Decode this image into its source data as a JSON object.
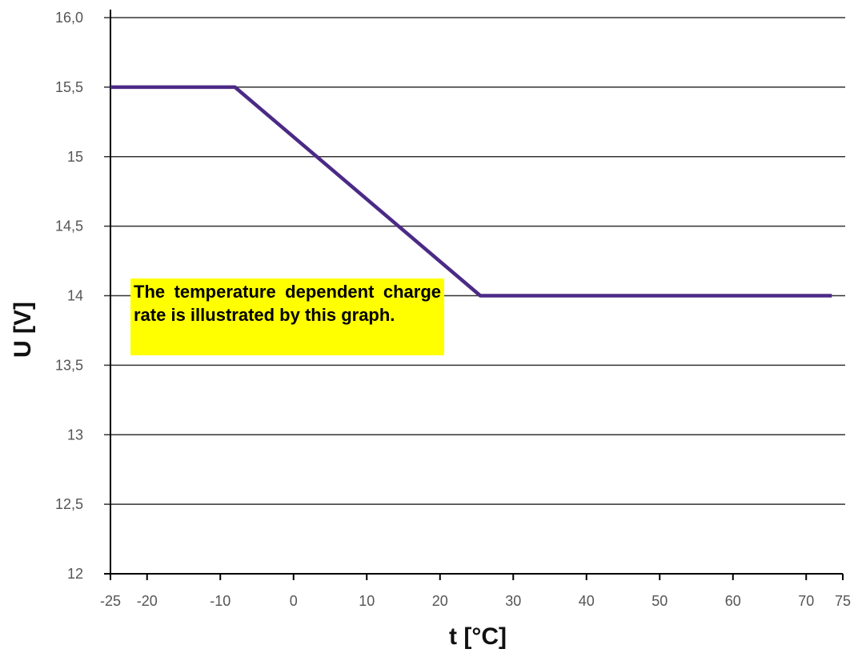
{
  "chart_data": {
    "type": "line",
    "xlabel": "t [°C]",
    "ylabel": "U [V]",
    "xlim": [
      -25,
      75
    ],
    "ylim": [
      12,
      16
    ],
    "x_ticks": [
      -25,
      -20,
      -10,
      0,
      10,
      20,
      30,
      40,
      50,
      60,
      70,
      75
    ],
    "x_tick_labels": [
      "-25",
      "-20",
      "-10",
      "0",
      "10",
      "20",
      "30",
      "40",
      "50",
      "60",
      "70",
      "75"
    ],
    "y_ticks": [
      12,
      12.5,
      13,
      13.5,
      14,
      14.5,
      15,
      15.5,
      16
    ],
    "y_tick_labels": [
      "12",
      "12,5",
      "13",
      "13,5",
      "14",
      "14,5",
      "15",
      "15,5",
      "16,0"
    ],
    "grid": "horizontal",
    "series": [
      {
        "color": "#4b2a86",
        "x": [
          -25,
          -8,
          25.5,
          73.5
        ],
        "y": [
          15.5,
          15.5,
          14.0,
          14.0
        ]
      }
    ],
    "annotation": "The temperature dependent charge rate is illustrated by this graph."
  },
  "colors": {
    "line": "#4b2a86",
    "grid": "#333333",
    "annotation_background": "#ffff00"
  }
}
